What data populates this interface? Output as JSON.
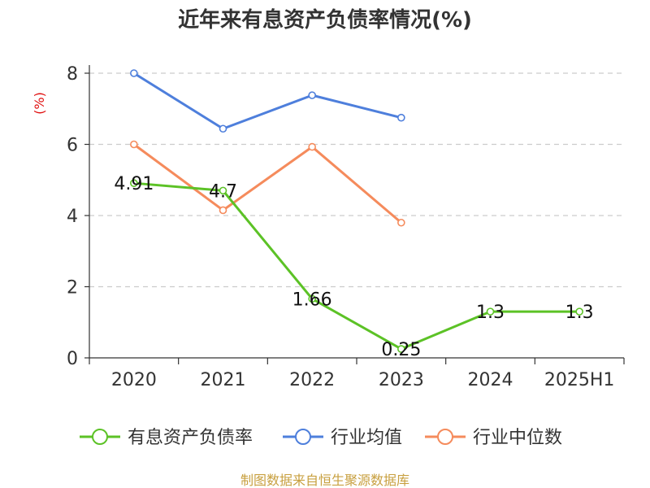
{
  "chart_data": {
    "type": "line",
    "title": "近年来有息资产负债率情况(%)",
    "y_unit": "(%)",
    "categories": [
      "2020",
      "2021",
      "2022",
      "2023",
      "2024",
      "2025H1"
    ],
    "ylim": [
      0,
      8
    ],
    "y_ticks": [
      0,
      2,
      4,
      6,
      8
    ],
    "grid": true,
    "legend_position": "bottom",
    "series": [
      {
        "name": "有息资产负债率",
        "color": "#5cc226",
        "values": [
          4.91,
          4.7,
          1.66,
          0.25,
          1.3,
          1.3
        ],
        "labels": [
          "4.91",
          "4.7",
          "1.66",
          "0.25",
          "1.3",
          "1.3"
        ]
      },
      {
        "name": "行业均值",
        "color": "#4e7fdc",
        "values": [
          8.0,
          6.44,
          7.38,
          6.75,
          null,
          null
        ],
        "labels": null
      },
      {
        "name": "行业中位数",
        "color": "#f58b5c",
        "values": [
          6.0,
          4.15,
          5.93,
          3.8,
          null,
          null
        ],
        "labels": null
      }
    ]
  },
  "footer": {
    "source": "制图数据来自恒生聚源数据库"
  }
}
